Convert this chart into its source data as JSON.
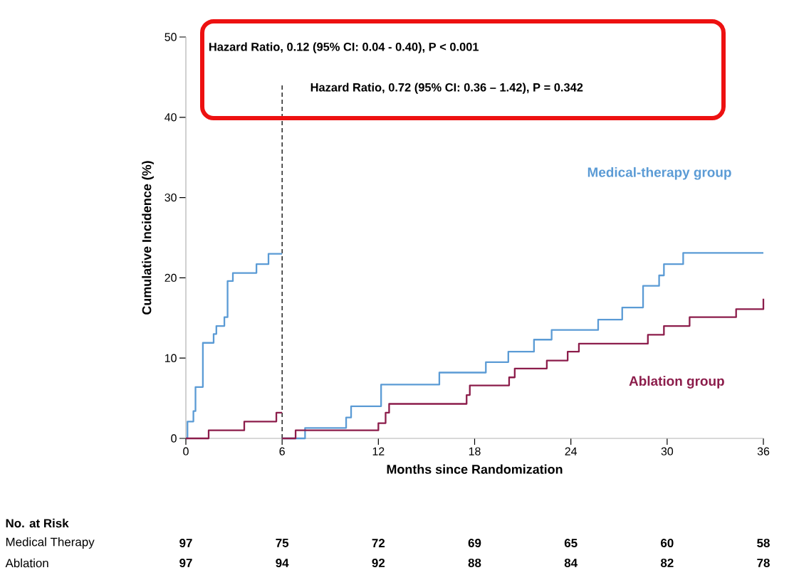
{
  "chart_data": {
    "type": "step",
    "xlabel": "Months since Randomization",
    "ylabel": "Cumulative Incidence (%)",
    "xlim": [
      0,
      36
    ],
    "ylim": [
      0,
      50
    ],
    "xticks": [
      0,
      6,
      12,
      18,
      24,
      30,
      36
    ],
    "yticks": [
      0,
      10,
      20,
      30,
      40,
      50
    ],
    "series": [
      {
        "name": "Medical-therapy group",
        "color": "#5b9bd5",
        "x": [
          6,
          7.43,
          9.99,
          10.3,
          12.17,
          15.8,
          18.7,
          20.1,
          21.7,
          22.8,
          25.7,
          27.2,
          28.5,
          29.5,
          29.8,
          31.0,
          36
        ],
        "values": [
          0,
          1.3,
          2.6,
          4.0,
          6.7,
          8.2,
          9.5,
          10.8,
          12.3,
          13.5,
          14.8,
          16.3,
          19.0,
          20.3,
          21.7,
          23.1,
          23.1
        ]
      },
      {
        "name": "Ablation group",
        "color": "#8c1d4b",
        "x": [
          6,
          6.84,
          12.0,
          12.45,
          12.67,
          17.5,
          17.7,
          20.15,
          20.5,
          22.5,
          23.8,
          24.5,
          28.8,
          29.8,
          31.4,
          34.3,
          36
        ],
        "values": [
          0,
          1.0,
          1.9,
          3.2,
          4.3,
          5.4,
          6.6,
          7.6,
          8.7,
          9.7,
          10.8,
          11.8,
          12.9,
          14.0,
          15.1,
          16.1,
          17.4
        ]
      },
      {
        "color": "#5b9bd5",
        "x": [
          0,
          0.1,
          0.47,
          0.6,
          1.06,
          1.73,
          1.9,
          2.4,
          2.6,
          2.93,
          4.4,
          5.15,
          6
        ],
        "values": [
          0,
          2.1,
          3.4,
          6.4,
          11.9,
          13,
          14,
          15.1,
          19.6,
          20.6,
          21.7,
          23.0,
          23.0
        ]
      },
      {
        "color": "#8c1d4b",
        "x": [
          0,
          1.42,
          3.64,
          5.64,
          6
        ],
        "values": [
          0,
          1.0,
          2.1,
          3.2,
          3.2
        ]
      }
    ],
    "ref_lines": [
      {
        "axis": "x",
        "value": 6,
        "color": "#000000",
        "line_style": "dashed"
      }
    ],
    "annotations": [
      "Hazard Ratio, 0.12 (95% CI: 0.04 - 0.40), P < 0.001",
      "Hazard Ratio, 0.72 (95% CI: 0.36 – 1.42), P = 0.342",
      "No. at Risk",
      "Medical Therapy",
      "97",
      "75",
      "72",
      "69",
      "65",
      "60",
      "58",
      "Ablation",
      "97",
      "94",
      "92",
      "88",
      "84",
      "82",
      "78"
    ]
  }
}
